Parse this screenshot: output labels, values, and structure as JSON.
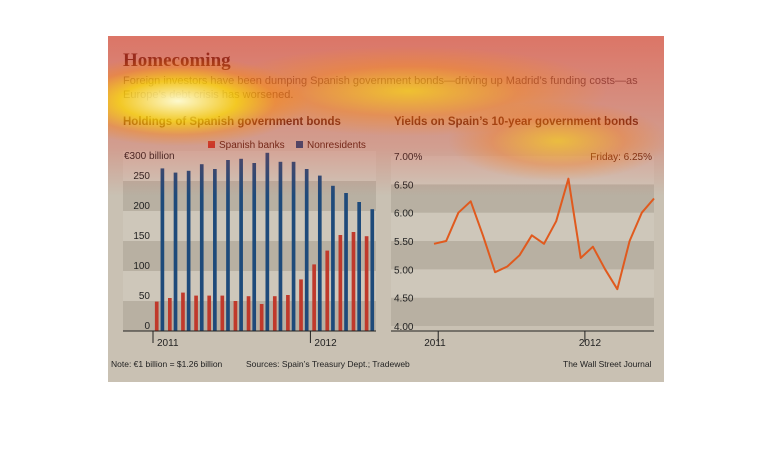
{
  "header": {
    "title": "Homecoming",
    "subtitle": "Foreign investors have been dumping Spanish government bonds—driving up Madrid’s funding costs—as Europe’s debt crisis has worsened."
  },
  "footer": {
    "note": "Note: €1 billion = $1.26 billion",
    "sources": "Sources: Spain’s Treasury Dept.; Tradeweb",
    "credit": "The Wall Street Journal"
  },
  "colors": {
    "spanish_banks": "#c0392b",
    "nonresidents": "#1e4a7a",
    "yield_line": "#e05a1e",
    "title": "#4a1f10",
    "background": "#c9c1b3"
  },
  "chart_data": [
    {
      "type": "bar",
      "title": "Holdings of Spanish government bonds",
      "unit_label": "€300 billion",
      "yticks": [
        "0",
        "50",
        "100",
        "150",
        "200",
        "250"
      ],
      "ylim": [
        0,
        300
      ],
      "xticks": [
        "2011",
        "2012"
      ],
      "legend_position": "top-right",
      "categories": [
        "2011-01",
        "2011-02",
        "2011-03",
        "2011-04",
        "2011-05",
        "2011-06",
        "2011-07",
        "2011-08",
        "2011-09",
        "2011-10",
        "2011-11",
        "2011-12",
        "2012-01",
        "2012-02",
        "2012-03",
        "2012-04",
        "2012-05"
      ],
      "series": [
        {
          "name": "Spanish banks",
          "values": [
            49,
            55,
            64,
            59,
            59,
            59,
            50,
            58,
            45,
            58,
            60,
            86,
            111,
            134,
            160,
            165,
            158
          ]
        },
        {
          "name": "Nonresidents",
          "values": [
            271,
            264,
            267,
            278,
            270,
            285,
            287,
            280,
            297,
            282,
            282,
            270,
            259,
            242,
            230,
            215,
            203
          ]
        }
      ]
    },
    {
      "type": "line",
      "title": "Yields on Spain’s 10-year government bonds",
      "annotation": "Friday: 6.25%",
      "yticks": [
        "4.00",
        "4.50",
        "5.00",
        "5.50",
        "6.00",
        "6.50",
        "7.00%"
      ],
      "ylim": [
        4.0,
        7.0
      ],
      "xticks": [
        "2011",
        "2012"
      ],
      "x": [
        "2010-12",
        "2011-01",
        "2011-02",
        "2011-03",
        "2011-04",
        "2011-05",
        "2011-06",
        "2011-07",
        "2011-08",
        "2011-09",
        "2011-10",
        "2011-11",
        "2011-12",
        "2012-01",
        "2012-02",
        "2012-03",
        "2012-04",
        "2012-05",
        "2012-06"
      ],
      "series": [
        {
          "name": "",
          "values": [
            5.45,
            5.5,
            6.0,
            6.2,
            5.6,
            4.95,
            5.05,
            5.25,
            5.6,
            5.45,
            5.85,
            6.6,
            5.2,
            5.4,
            5.0,
            4.65,
            5.5,
            6.0,
            6.25
          ]
        }
      ]
    }
  ]
}
